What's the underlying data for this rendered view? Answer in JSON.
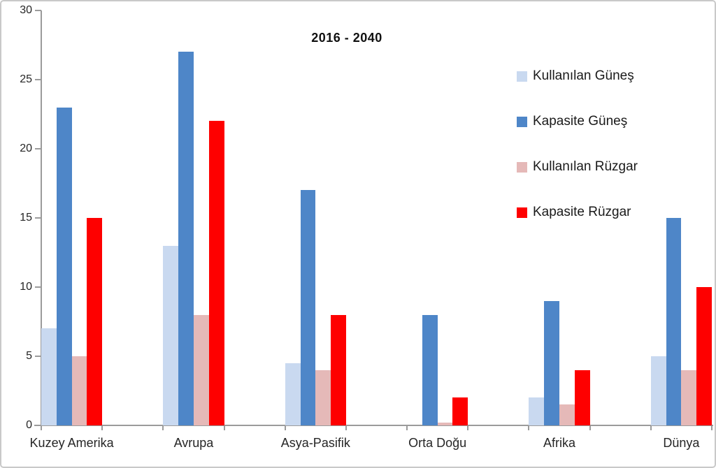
{
  "chart_data": {
    "type": "bar",
    "title": "2016 - 2040",
    "categories": [
      "Kuzey Amerika",
      "Avrupa",
      "Asya-Pasifik",
      "Orta Doğu",
      "Afrika",
      "Dünya"
    ],
    "series": [
      {
        "name": "Kullanılan Güneş",
        "color": "#c9d9f0",
        "values": [
          7,
          13,
          4.5,
          0,
          2,
          5
        ]
      },
      {
        "name": "Kapasite Güneş",
        "color": "#4e86c8",
        "values": [
          23,
          27,
          17,
          8,
          9,
          15
        ]
      },
      {
        "name": "Kullanılan Rüzgar",
        "color": "#e5b9b8",
        "values": [
          5,
          8,
          4,
          0.2,
          1.5,
          4
        ]
      },
      {
        "name": "Kapasite Rüzgar",
        "color": "#fe0000",
        "values": [
          15,
          22,
          8,
          2,
          4,
          10
        ]
      }
    ],
    "ylim": [
      0,
      30
    ],
    "yticks": [
      0,
      5,
      10,
      15,
      20,
      25,
      30
    ],
    "grid": false,
    "legend_position": "upper-right",
    "axis_color": "#9b9b9b"
  }
}
